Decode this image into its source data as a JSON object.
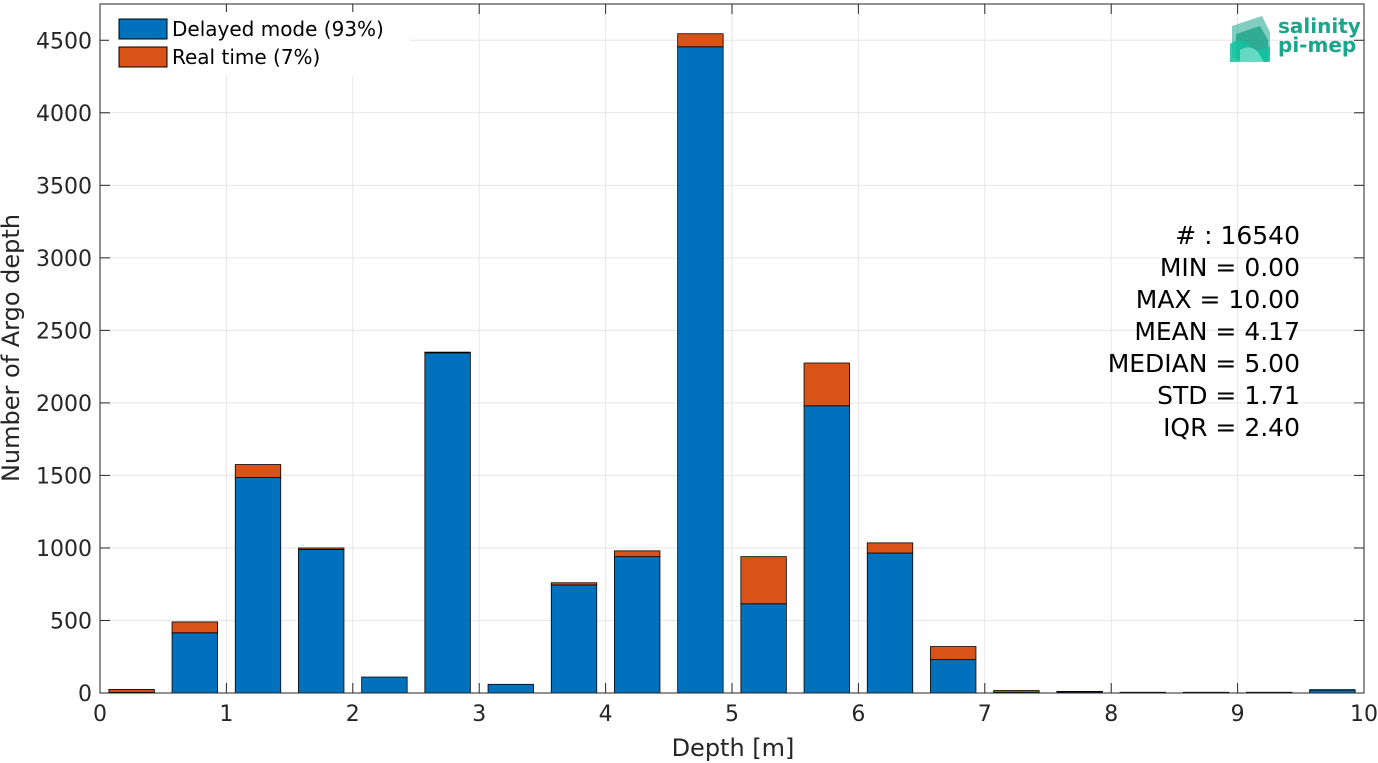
{
  "chart_data": {
    "type": "bar",
    "stacked": true,
    "xlabel": "Depth [m]",
    "ylabel": "Number of Argo depth",
    "xlim": [
      0,
      10
    ],
    "ylim": [
      0,
      4750
    ],
    "grid": true,
    "x_ticks": [
      "0",
      "1",
      "2",
      "3",
      "4",
      "5",
      "6",
      "7",
      "8",
      "9",
      "10"
    ],
    "y_ticks": [
      "0",
      "500",
      "1000",
      "1500",
      "2000",
      "2500",
      "3000",
      "3500",
      "4000",
      "4500"
    ],
    "bin_width": 0.5,
    "bin_centers": [
      0.25,
      0.75,
      1.25,
      1.75,
      2.25,
      2.75,
      3.25,
      3.75,
      4.25,
      4.75,
      5.25,
      5.75,
      6.25,
      6.75,
      7.25,
      7.75,
      8.25,
      8.75,
      9.25,
      9.75
    ],
    "series": [
      {
        "name": "Delayed mode (93%)",
        "color": "#0072bd",
        "values": [
          5,
          415,
          1485,
          990,
          110,
          2345,
          60,
          745,
          940,
          4455,
          615,
          1980,
          965,
          230,
          5,
          8,
          3,
          3,
          3,
          20
        ]
      },
      {
        "name": "Real time (7%)",
        "color": "#d95319",
        "values": [
          20,
          75,
          90,
          10,
          0,
          5,
          0,
          15,
          40,
          90,
          325,
          295,
          70,
          90,
          12,
          3,
          2,
          2,
          2,
          3
        ]
      }
    ],
    "legend_position": "top-left",
    "annotation": [
      "# : 16540",
      "MIN = 0.00",
      "MAX =  10.00",
      "MEAN = 4.17",
      "MEDIAN = 5.00",
      "STD = 1.71",
      "IQR = 2.40"
    ]
  },
  "logo": {
    "line1": "salinity",
    "line2": "pi-mep",
    "color": "#1aa58c"
  }
}
